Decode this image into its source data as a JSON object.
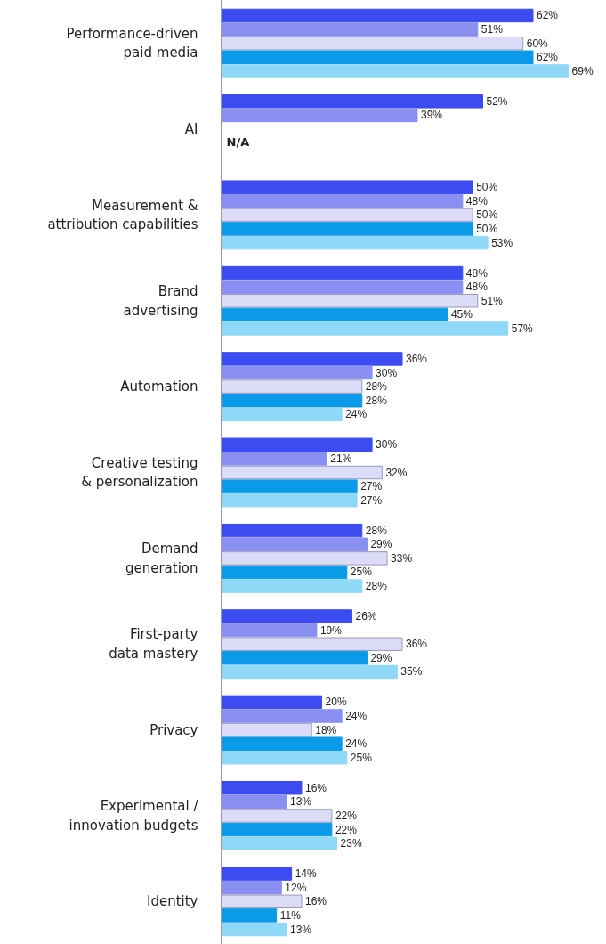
{
  "chart_data": {
    "type": "bar",
    "orientation": "horizontal",
    "categories": [
      "Performance-driven\npaid media",
      "AI",
      "Measurement &\nattribution capabilities",
      "Brand\nadvertising",
      "Automation",
      "Creative testing\n& personalization",
      "Demand\ngeneration",
      "First-party\ndata mastery",
      "Privacy",
      "Experimental /\ninnovation budgets",
      "Identity"
    ],
    "series": [
      {
        "color": "#3d4cf0",
        "values": [
          62,
          52,
          50,
          48,
          36,
          30,
          28,
          26,
          20,
          16,
          14
        ],
        "value_labels": [
          "62%",
          "52%",
          "50%",
          "48%",
          "36%",
          "30%",
          "28%",
          "26%",
          "20%",
          "16%",
          "14%"
        ]
      },
      {
        "color": "#8a8ff2",
        "values": [
          51,
          39,
          48,
          48,
          30,
          21,
          29,
          19,
          24,
          13,
          12
        ],
        "value_labels": [
          "51%",
          "39%",
          "48%",
          "48%",
          "30%",
          "21%",
          "29%",
          "19%",
          "24%",
          "13%",
          "12%"
        ]
      },
      {
        "color": "#dcdcf8",
        "values": [
          60,
          null,
          50,
          51,
          28,
          32,
          33,
          36,
          18,
          22,
          16
        ],
        "value_labels": [
          "60%",
          null,
          "50%",
          "51%",
          "28%",
          "32%",
          "33%",
          "36%",
          "18%",
          "22%",
          "16%"
        ]
      },
      {
        "color": "#0a9ae8",
        "values": [
          62,
          null,
          50,
          45,
          28,
          27,
          25,
          29,
          24,
          22,
          11
        ],
        "value_labels": [
          "62%",
          null,
          "50%",
          "45%",
          "28%",
          "27%",
          "25%",
          "29%",
          "24%",
          "22%",
          "11%"
        ]
      },
      {
        "color": "#90d8f8",
        "values": [
          69,
          null,
          53,
          57,
          24,
          27,
          28,
          35,
          25,
          23,
          13
        ],
        "value_labels": [
          "69%",
          null,
          "53%",
          "57%",
          "24%",
          "27%",
          "28%",
          "35%",
          "25%",
          "23%",
          "13%"
        ]
      }
    ],
    "tick_labels": "y",
    "grid": false,
    "annotations": [
      "N/A"
    ]
  }
}
